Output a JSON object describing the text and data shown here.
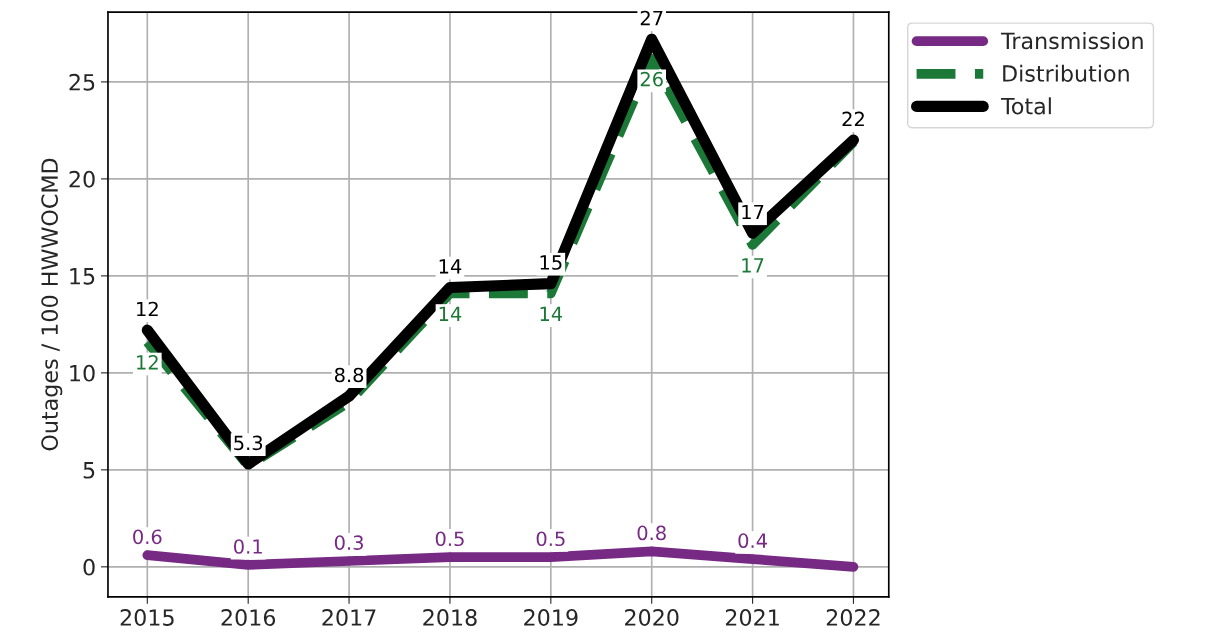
{
  "chart_data": {
    "type": "line",
    "ylabel": "Outages / 100 HWWOCMD",
    "categories": [
      "2015",
      "2016",
      "2017",
      "2018",
      "2019",
      "2020",
      "2021",
      "2022"
    ],
    "series": [
      {
        "name": "Transmission",
        "color": "#762a83",
        "line_style": "solid",
        "values": [
          0.6,
          0.1,
          0.3,
          0.5,
          0.5,
          0.8,
          0.4,
          0.0
        ],
        "value_labels": [
          "0.6",
          "0.1",
          "0.3",
          "0.5",
          "0.5",
          "0.8",
          "0.4",
          null
        ]
      },
      {
        "name": "Distribution",
        "color": "#1b7837",
        "line_style": "dashed",
        "values": [
          11.6,
          5.2,
          8.5,
          14.1,
          14.1,
          26.2,
          16.6,
          21.9
        ],
        "value_labels": [
          "12",
          null,
          null,
          "14",
          "14",
          "26",
          "17",
          null
        ]
      },
      {
        "name": "Total",
        "color": "#000000",
        "line_style": "solid",
        "values": [
          12.2,
          5.3,
          8.8,
          14.4,
          14.6,
          27.2,
          17.2,
          22.0
        ],
        "value_labels": [
          "12",
          "5.3",
          "8.8",
          "14",
          "15",
          "27",
          "17",
          "22"
        ]
      }
    ],
    "ylim": [
      -1.55,
      28.6
    ],
    "yticks": [
      0,
      5,
      10,
      15,
      20,
      25
    ],
    "grid": true,
    "legend": "top right",
    "marker": "none"
  }
}
